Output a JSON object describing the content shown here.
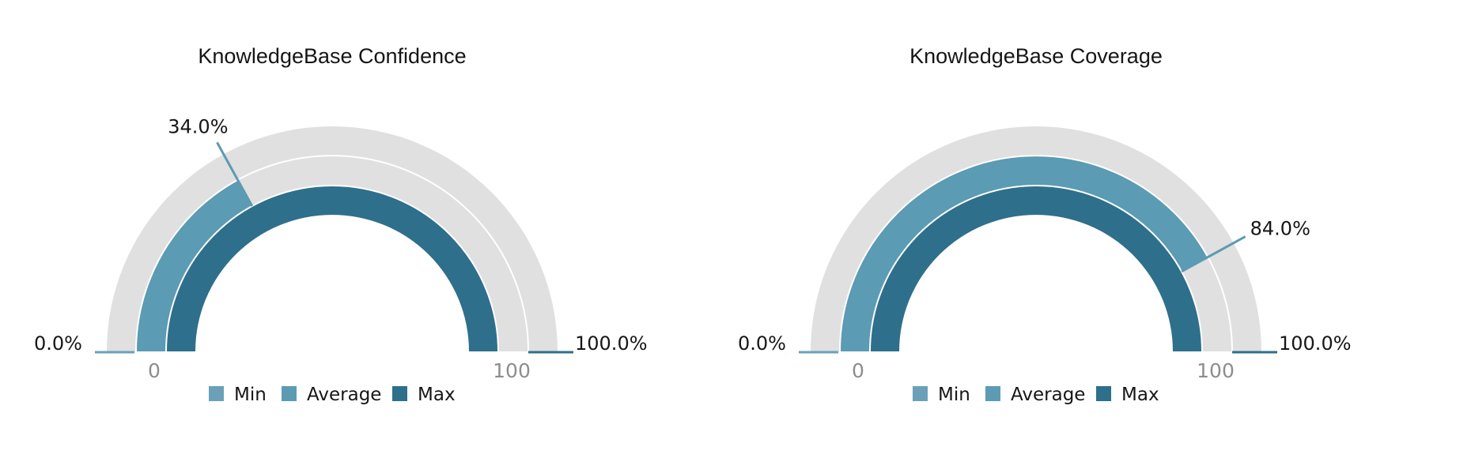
{
  "chart_data": [
    {
      "type": "gauge",
      "title": "KnowledgeBase Confidence",
      "range": [
        0,
        100
      ],
      "tick_labels": [
        "0",
        "100"
      ],
      "series": [
        {
          "name": "Min",
          "value": 0.0,
          "label": "0.0%",
          "color": "#6aa1b8"
        },
        {
          "name": "Average",
          "value": 34.0,
          "label": "34.0%",
          "color": "#5b9bb4"
        },
        {
          "name": "Max",
          "value": 100.0,
          "label": "100.0%",
          "color": "#2e6f8c"
        }
      ]
    },
    {
      "type": "gauge",
      "title": "KnowledgeBase Coverage",
      "range": [
        0,
        100
      ],
      "tick_labels": [
        "0",
        "100"
      ],
      "series": [
        {
          "name": "Min",
          "value": 0.0,
          "label": "0.0%",
          "color": "#6aa1b8"
        },
        {
          "name": "Average",
          "value": 84.0,
          "label": "84.0%",
          "color": "#5b9bb4"
        },
        {
          "name": "Max",
          "value": 100.0,
          "label": "100.0%",
          "color": "#2e6f8c"
        }
      ]
    }
  ],
  "track_color": "#e0e0e0"
}
